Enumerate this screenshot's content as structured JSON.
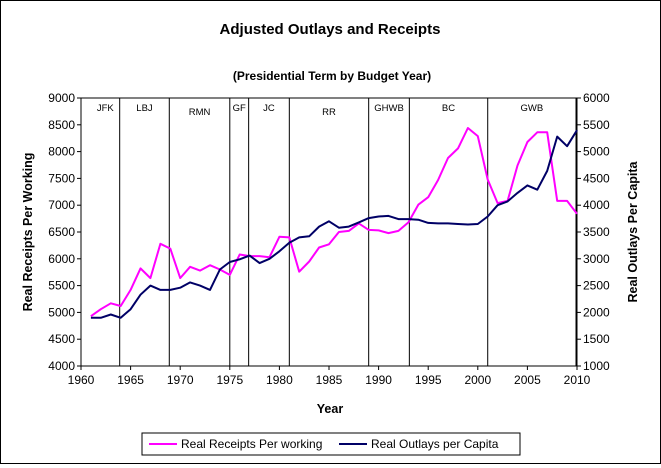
{
  "chart_data": {
    "type": "line",
    "title": "Adjusted Outlays and Receipts",
    "subtitle": "(Presidential Term by Budget Year)",
    "xlabel": "Year",
    "ylabel_left": "Real Receipts Per Working",
    "ylabel_right": "Real Outlays Per Capita",
    "xlim": [
      1960,
      2010
    ],
    "ylim_left": [
      4000,
      9000
    ],
    "ylim_right": [
      1000,
      6000
    ],
    "xticks": [
      1960,
      1965,
      1970,
      1975,
      1980,
      1985,
      1990,
      1995,
      2000,
      2005,
      2010
    ],
    "yticks_left": [
      4000,
      4500,
      5000,
      5500,
      6000,
      6500,
      7000,
      7500,
      8000,
      8500,
      9000
    ],
    "yticks_right": [
      1000,
      1500,
      2000,
      2500,
      3000,
      3500,
      4000,
      4500,
      5000,
      5500,
      6000
    ],
    "grid": false,
    "legend_position": "bottom",
    "terms": [
      {
        "label": "JFK",
        "start": 1961,
        "end": 1963.9
      },
      {
        "label": "LBJ",
        "start": 1963.9,
        "end": 1968.9
      },
      {
        "label": "RMN",
        "start": 1968.9,
        "end": 1975
      },
      {
        "label": "GF",
        "start": 1975,
        "end": 1976.9
      },
      {
        "label": "JC",
        "start": 1976.9,
        "end": 1981
      },
      {
        "label": "RR",
        "start": 1981,
        "end": 1989
      },
      {
        "label": "GHWB",
        "start": 1989,
        "end": 1993.1
      },
      {
        "label": "BC",
        "start": 1993.1,
        "end": 2001
      },
      {
        "label": "GWB",
        "start": 2001,
        "end": 2009.9
      }
    ],
    "term_dividers": [
      1963.9,
      1968.9,
      1975,
      1976.9,
      1981,
      1989,
      1993.1,
      2001,
      2009.9
    ],
    "series": [
      {
        "name": "Real Receipts Per working",
        "axis": "left",
        "color": "#ff00ff",
        "x": [
          1961,
          1962,
          1963,
          1964,
          1965,
          1966,
          1967,
          1968,
          1969,
          1970,
          1971,
          1972,
          1973,
          1974,
          1975,
          1976,
          1977,
          1978,
          1979,
          1980,
          1981,
          1982,
          1983,
          1984,
          1985,
          1986,
          1987,
          1988,
          1989,
          1990,
          1991,
          1992,
          1993,
          1994,
          1995,
          1996,
          1997,
          1998,
          1999,
          2000,
          2001,
          2002,
          2003,
          2004,
          2005,
          2006,
          2007,
          2008,
          2009,
          2010
        ],
        "values": [
          4930,
          5060,
          5170,
          5120,
          5420,
          5820,
          5640,
          6280,
          6190,
          5640,
          5850,
          5780,
          5880,
          5800,
          5700,
          6080,
          6050,
          6050,
          6030,
          6410,
          6400,
          5760,
          5950,
          6210,
          6270,
          6500,
          6520,
          6660,
          6540,
          6530,
          6480,
          6520,
          6680,
          7010,
          7150,
          7470,
          7880,
          8060,
          8440,
          8290,
          7480,
          7040,
          7080,
          7740,
          8180,
          8360,
          8360,
          7080,
          7080,
          6840
        ]
      },
      {
        "name": "Real Outlays per Capita",
        "axis": "right",
        "color": "#000066",
        "x": [
          1961,
          1962,
          1963,
          1964,
          1965,
          1966,
          1967,
          1968,
          1969,
          1970,
          1971,
          1972,
          1973,
          1974,
          1975,
          1976,
          1977,
          1978,
          1979,
          1980,
          1981,
          1982,
          1983,
          1984,
          1985,
          1986,
          1987,
          1988,
          1989,
          1990,
          1991,
          1992,
          1993,
          1994,
          1995,
          1996,
          1997,
          1998,
          1999,
          2000,
          2001,
          2002,
          2003,
          2004,
          2005,
          2006,
          2007,
          2008,
          2009,
          2010
        ],
        "values": [
          1900,
          1900,
          1960,
          1900,
          2060,
          2330,
          2500,
          2420,
          2420,
          2460,
          2560,
          2500,
          2420,
          2800,
          2940,
          2990,
          3060,
          2920,
          3000,
          3140,
          3300,
          3400,
          3420,
          3600,
          3700,
          3580,
          3600,
          3680,
          3760,
          3790,
          3800,
          3740,
          3740,
          3730,
          3670,
          3660,
          3660,
          3650,
          3640,
          3650,
          3790,
          4000,
          4070,
          4230,
          4370,
          4290,
          4640,
          5280,
          5100,
          5400
        ]
      }
    ],
    "legend": [
      "Real Receipts Per working",
      "Real Outlays per Capita"
    ]
  }
}
